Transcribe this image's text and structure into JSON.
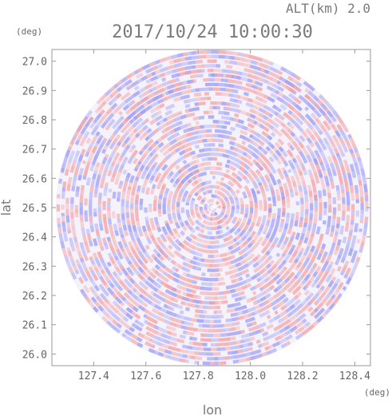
{
  "chart_data": {
    "type": "heatmap",
    "title": "2017/10/24 10:00:30",
    "altitude_label": "ALT(km) 2.0",
    "xlabel": "lon",
    "ylabel": "lat",
    "x_unit": "(deg)",
    "y_unit": "(deg)",
    "xlim": [
      127.24,
      128.46
    ],
    "ylim": [
      25.96,
      27.04
    ],
    "x_ticks": [
      127.4,
      127.6,
      127.8,
      128.0,
      128.2,
      128.4
    ],
    "x_tick_labels": [
      "127.4",
      "127.6",
      "127.8",
      "128.0",
      "128.2",
      "128.4"
    ],
    "y_ticks": [
      26.0,
      26.1,
      26.2,
      26.3,
      26.4,
      26.5,
      26.6,
      26.7,
      26.8,
      26.9,
      27.0
    ],
    "y_tick_labels": [
      "26.0",
      "26.1",
      "26.2",
      "26.3",
      "26.4",
      "26.5",
      "26.6",
      "26.7",
      "26.8",
      "26.9",
      "27.0"
    ],
    "radar_center": {
      "lon": 127.855,
      "lat": 26.5
    },
    "radar_range_deg": {
      "lon": 0.6,
      "lat": 0.54
    },
    "grid": false,
    "colormap": {
      "negative": "#9a9af5",
      "zero": "#ffffff",
      "positive": "#f5a0a0"
    },
    "frame_color": "#9a9a9a"
  }
}
